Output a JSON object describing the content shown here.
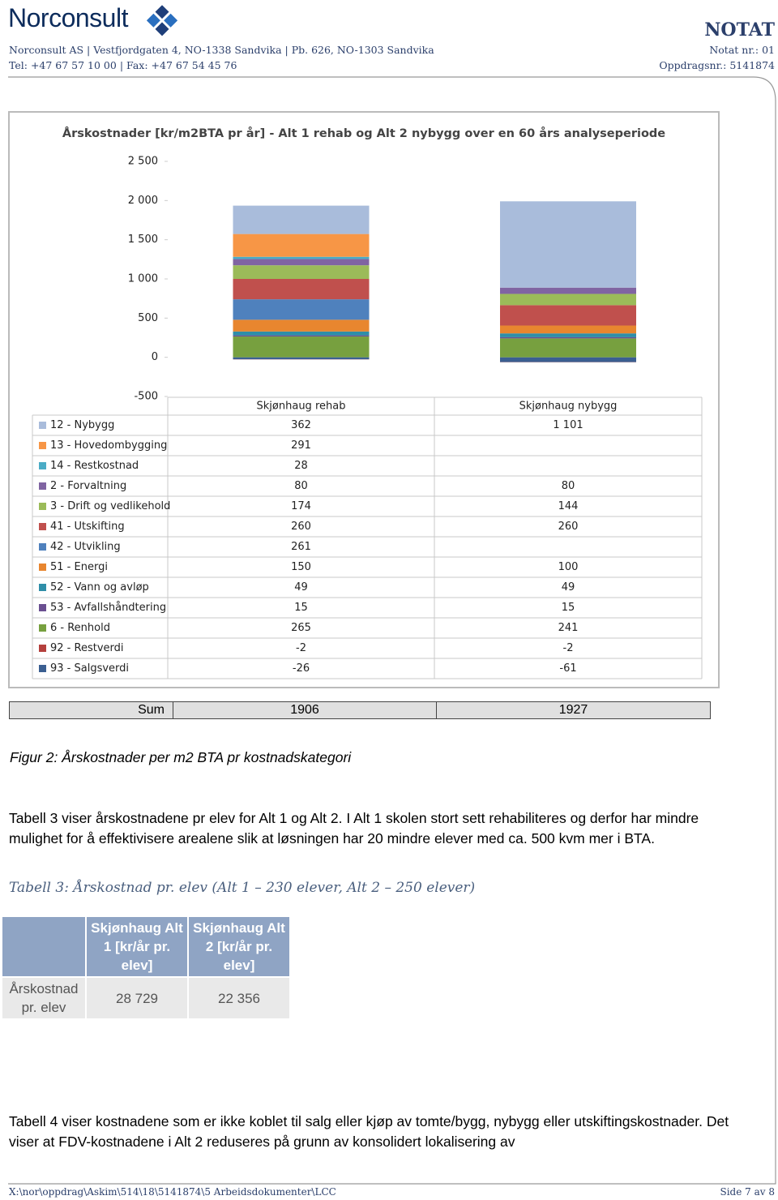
{
  "header": {
    "logo": "Norconsult",
    "address": "Norconsult AS | Vestfjordgaten 4,  NO-1338 Sandvika | Pb. 626, NO-1303 Sandvika",
    "phone": "Tel: +47 67 57 10 00 | Fax: +47 67 54 45 76",
    "doc_type": "NOTAT",
    "notat_nr": "Notat nr.: 01",
    "oppdragsnr": "Oppdragsnr.: 5141874"
  },
  "chart_data": {
    "type": "bar",
    "stacked": true,
    "title": "Årskostnader [kr/m2BTA pr år] - Alt 1 rehab og Alt 2 nybygg over en 60 års analyseperiode",
    "categories": [
      "Skjønhaug rehab",
      "Skjønhaug nybygg"
    ],
    "ylim": [
      -500,
      2500
    ],
    "yticks": [
      -500,
      0,
      500,
      {
        "value": 1000,
        "label": "1 000"
      },
      {
        "value": 1500,
        "label": "1 500"
      },
      {
        "value": 2000,
        "label": "2 000"
      },
      {
        "value": 2500,
        "label": "2 500"
      }
    ],
    "grid": false,
    "series": [
      {
        "name": "12 - Nybygg",
        "color": "#a9bcdb",
        "values": [
          362,
          1101
        ],
        "value_labels": [
          "362",
          "1 101"
        ]
      },
      {
        "name": "13 - Hovedombygging",
        "color": "#f79646",
        "values": [
          291,
          null
        ]
      },
      {
        "name": "14 - Restkostnad",
        "color": "#4bacc6",
        "values": [
          28,
          null
        ]
      },
      {
        "name": "2 - Forvaltning",
        "color": "#8064a2",
        "values": [
          80,
          80
        ]
      },
      {
        "name": "3 - Drift og vedlikehold",
        "color": "#9bbb59",
        "values": [
          174,
          144
        ]
      },
      {
        "name": "41 - Utskifting",
        "color": "#c0504d",
        "values": [
          260,
          260
        ]
      },
      {
        "name": "42 - Utvikling",
        "color": "#4f81bd",
        "values": [
          261,
          null
        ]
      },
      {
        "name": "51 - Energi",
        "color": "#e8862f",
        "values": [
          150,
          100
        ]
      },
      {
        "name": "52 - Vann og avløp",
        "color": "#2f8ea8",
        "values": [
          49,
          49
        ]
      },
      {
        "name": "53 - Avfallshåndtering",
        "color": "#6a4f91",
        "values": [
          15,
          15
        ]
      },
      {
        "name": "6 - Renhold",
        "color": "#77a03f",
        "values": [
          265,
          241
        ]
      },
      {
        "name": "92 - Restverdi",
        "color": "#b4403d",
        "values": [
          -2,
          -2
        ]
      },
      {
        "name": "93 - Salgsverdi",
        "color": "#3b5f91",
        "values": [
          -26,
          -61
        ]
      }
    ]
  },
  "sum_row": {
    "label": "Sum",
    "values": [
      "1906",
      "1927"
    ]
  },
  "figure_caption": "Figur 2: Årskostnader per m2 BTA pr kostnadskategori",
  "paragraph1": "Tabell 3 viser årskostnadene pr elev for Alt 1 og Alt 2. I Alt 1 skolen stort sett rehabiliteres og derfor har mindre mulighet for å effektivisere arealene slik at løsningen har 20 mindre elever med ca. 500 kvm mer i BTA.",
  "table_caption": "Tabell 3: Årskostnad pr. elev (Alt 1 – 230 elever, Alt 2 – 250 elever)",
  "table": {
    "header": [
      "Skjønhaug Alt 1 [kr/år pr. elev]",
      "Skjønhaug Alt 2 [kr/år pr. elev]"
    ],
    "row_label": "Årskostnad pr. elev",
    "row": [
      "28 729",
      "22 356"
    ]
  },
  "paragraph2": "Tabell 4 viser kostnadene som er ikke koblet til salg eller kjøp av tomte/bygg, nybygg eller utskiftingskostnader. Det viser at FDV-kostnadene i Alt 2 reduseres på grunn av konsolidert lokalisering av",
  "footer": {
    "path": "X:\\nor\\oppdrag\\Askim\\514\\18\\5141874\\5 Arbeidsdokumenter\\LCC",
    "page": "Side 7 av 8"
  }
}
